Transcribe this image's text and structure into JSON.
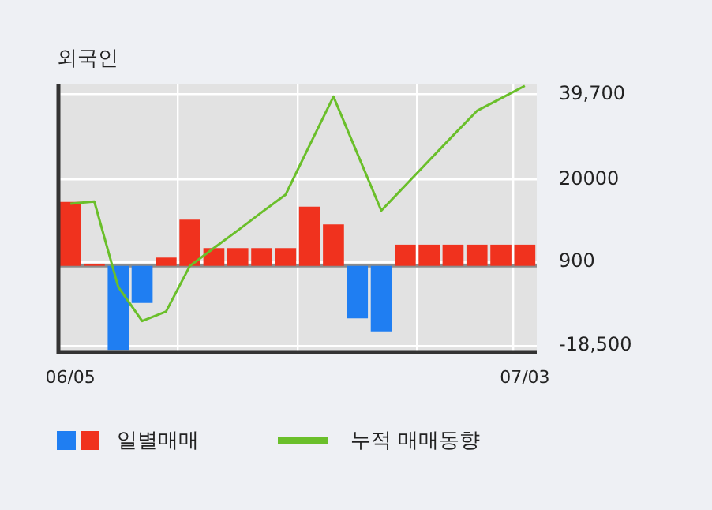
{
  "chart_data": {
    "type": "bar",
    "title": "외국인",
    "categories": [
      "06/05",
      null,
      null,
      null,
      null,
      null,
      null,
      null,
      null,
      null,
      null,
      null,
      null,
      null,
      null,
      null,
      null,
      null,
      null,
      "07/03"
    ],
    "series": [
      {
        "name": "일별매매",
        "colors": [
          "#f0321e",
          "#f0321e",
          "#1f7ef2",
          "#1f7ef2",
          "#f0321e",
          "#f0321e",
          "#f0321e",
          "#f0321e",
          "#f0321e",
          "#f0321e",
          "#f0321e",
          "#f0321e",
          "#1f7ef2",
          "#1f7ef2",
          "#f0321e",
          "#f0321e",
          "#f0321e",
          "#f0321e",
          "#f0321e",
          "#f0321e"
        ],
        "values": [
          14800,
          500,
          -19500,
          -8600,
          1900,
          10700,
          4100,
          4100,
          4100,
          4100,
          13700,
          9600,
          -12200,
          -15200,
          4900,
          4900,
          4900,
          4900,
          4900,
          4900
        ]
      },
      {
        "name": "누적 매매동향",
        "type": "line",
        "color": "#6abf2a",
        "values": [
          14400,
          14900,
          -4900,
          -12800,
          -10600,
          0,
          4100,
          8200,
          12400,
          16500,
          27900,
          39200,
          26000,
          12800,
          18600,
          24400,
          30200,
          35900,
          38800,
          41700
        ]
      }
    ],
    "ylim": [
      -20000,
      42200
    ],
    "yticks": [
      {
        "value": 39700,
        "label": "39,700"
      },
      20000,
      900,
      {
        "value": -18500,
        "label": "-18,500"
      }
    ],
    "grid": true,
    "legend": "bottom",
    "marker": "none"
  }
}
